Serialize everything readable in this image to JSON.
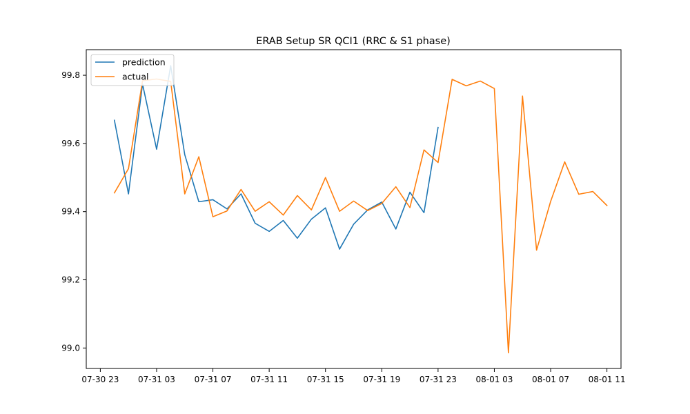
{
  "chart_data": {
    "type": "line",
    "title": "ERAB Setup SR QCI1 (RRC & S1 phase)",
    "xlabel": "",
    "ylabel": "",
    "x_start": "2023-07-31 00:00",
    "x_step_hours": 1,
    "xlim": [
      "07-30 22:00",
      "08-01 12:00"
    ],
    "ylim": [
      98.94,
      99.875
    ],
    "xticks": [
      "07-30 23",
      "07-31 03",
      "07-31 07",
      "07-31 11",
      "07-31 15",
      "07-31 19",
      "07-31 23",
      "08-01 03",
      "08-01 07",
      "08-01 11"
    ],
    "xtick_hours": [
      -1,
      3,
      7,
      11,
      15,
      19,
      23,
      27,
      31,
      35
    ],
    "yticks": [
      "99.0",
      "99.2",
      "99.4",
      "99.6",
      "99.8"
    ],
    "ytick_values": [
      99.0,
      99.2,
      99.4,
      99.6,
      99.8
    ],
    "grid": false,
    "legend_position": "upper-left",
    "series": [
      {
        "name": "prediction",
        "color": "#1f77b4",
        "values": [
          99.668,
          99.452,
          99.774,
          99.583,
          99.828,
          99.567,
          99.429,
          99.435,
          99.408,
          99.452,
          99.366,
          99.342,
          99.374,
          99.322,
          99.378,
          99.411,
          99.29,
          99.363,
          99.405,
          99.428,
          99.349,
          99.457,
          99.397,
          99.647
        ]
      },
      {
        "name": "actual",
        "color": "#ff7f0e",
        "values": [
          99.455,
          99.526,
          99.784,
          99.789,
          99.782,
          99.452,
          99.561,
          99.385,
          99.402,
          99.465,
          99.401,
          99.429,
          99.39,
          99.447,
          99.405,
          99.5,
          99.401,
          99.431,
          99.403,
          99.424,
          99.473,
          99.412,
          99.581,
          99.544,
          99.788,
          99.769,
          99.783,
          99.761,
          98.986,
          99.739,
          99.287,
          99.43,
          99.546,
          99.451,
          99.459,
          99.418
        ]
      }
    ]
  }
}
